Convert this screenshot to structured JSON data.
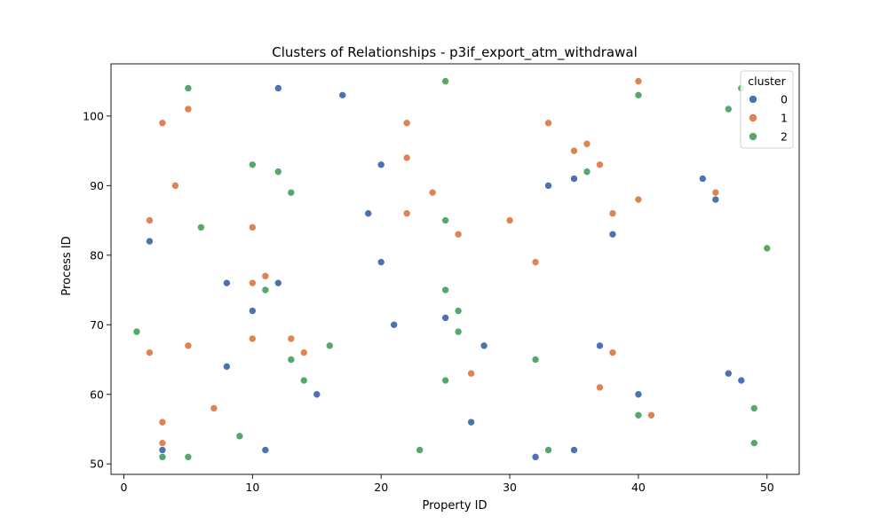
{
  "chart_data": {
    "type": "scatter",
    "title": "Clusters of Relationships - p3if_export_atm_withdrawal",
    "xlabel": "Property ID",
    "ylabel": "Process ID",
    "xlim": [
      -1,
      52.5
    ],
    "ylim": [
      48.5,
      107.5
    ],
    "xticks": [
      0,
      10,
      20,
      30,
      40,
      50
    ],
    "yticks": [
      50,
      60,
      70,
      80,
      90,
      100
    ],
    "grid": false,
    "legend": {
      "title": "cluster",
      "placement": "top-right"
    },
    "series": [
      {
        "name": "0",
        "color": "#4c72b0",
        "points": [
          [
            2,
            82
          ],
          [
            3,
            52
          ],
          [
            8,
            76
          ],
          [
            8,
            64
          ],
          [
            10,
            72
          ],
          [
            11,
            52
          ],
          [
            12,
            104
          ],
          [
            12,
            76
          ],
          [
            15,
            60
          ],
          [
            17,
            103
          ],
          [
            19,
            86
          ],
          [
            20,
            93
          ],
          [
            20,
            79
          ],
          [
            21,
            70
          ],
          [
            25,
            71
          ],
          [
            27,
            56
          ],
          [
            28,
            67
          ],
          [
            32,
            51
          ],
          [
            33,
            90
          ],
          [
            35,
            91
          ],
          [
            35,
            52
          ],
          [
            37,
            67
          ],
          [
            38,
            83
          ],
          [
            40,
            60
          ],
          [
            45,
            91
          ],
          [
            46,
            88
          ],
          [
            47,
            63
          ],
          [
            48,
            62
          ]
        ]
      },
      {
        "name": "1",
        "color": "#dd8452",
        "points": [
          [
            2,
            85
          ],
          [
            2,
            66
          ],
          [
            3,
            99
          ],
          [
            3,
            56
          ],
          [
            3,
            53
          ],
          [
            4,
            90
          ],
          [
            5,
            101
          ],
          [
            5,
            67
          ],
          [
            7,
            58
          ],
          [
            10,
            84
          ],
          [
            10,
            76
          ],
          [
            10,
            68
          ],
          [
            11,
            77
          ],
          [
            13,
            68
          ],
          [
            14,
            66
          ],
          [
            22,
            99
          ],
          [
            22,
            94
          ],
          [
            22,
            86
          ],
          [
            24,
            89
          ],
          [
            26,
            83
          ],
          [
            27,
            63
          ],
          [
            30,
            85
          ],
          [
            32,
            79
          ],
          [
            33,
            99
          ],
          [
            35,
            95
          ],
          [
            36,
            96
          ],
          [
            37,
            93
          ],
          [
            37,
            61
          ],
          [
            38,
            86
          ],
          [
            38,
            66
          ],
          [
            40,
            105
          ],
          [
            40,
            88
          ],
          [
            41,
            57
          ],
          [
            46,
            89
          ]
        ]
      },
      {
        "name": "2",
        "color": "#55a868",
        "points": [
          [
            1,
            69
          ],
          [
            3,
            51
          ],
          [
            5,
            104
          ],
          [
            5,
            51
          ],
          [
            6,
            84
          ],
          [
            9,
            54
          ],
          [
            10,
            93
          ],
          [
            11,
            75
          ],
          [
            12,
            92
          ],
          [
            13,
            89
          ],
          [
            13,
            65
          ],
          [
            14,
            62
          ],
          [
            16,
            67
          ],
          [
            23,
            52
          ],
          [
            25,
            105
          ],
          [
            25,
            85
          ],
          [
            25,
            75
          ],
          [
            25,
            62
          ],
          [
            26,
            72
          ],
          [
            26,
            69
          ],
          [
            32,
            65
          ],
          [
            33,
            52
          ],
          [
            36,
            92
          ],
          [
            40,
            103
          ],
          [
            40,
            57
          ],
          [
            47,
            101
          ],
          [
            48,
            104
          ],
          [
            49,
            58
          ],
          [
            49,
            53
          ],
          [
            50,
            81
          ]
        ]
      }
    ]
  }
}
